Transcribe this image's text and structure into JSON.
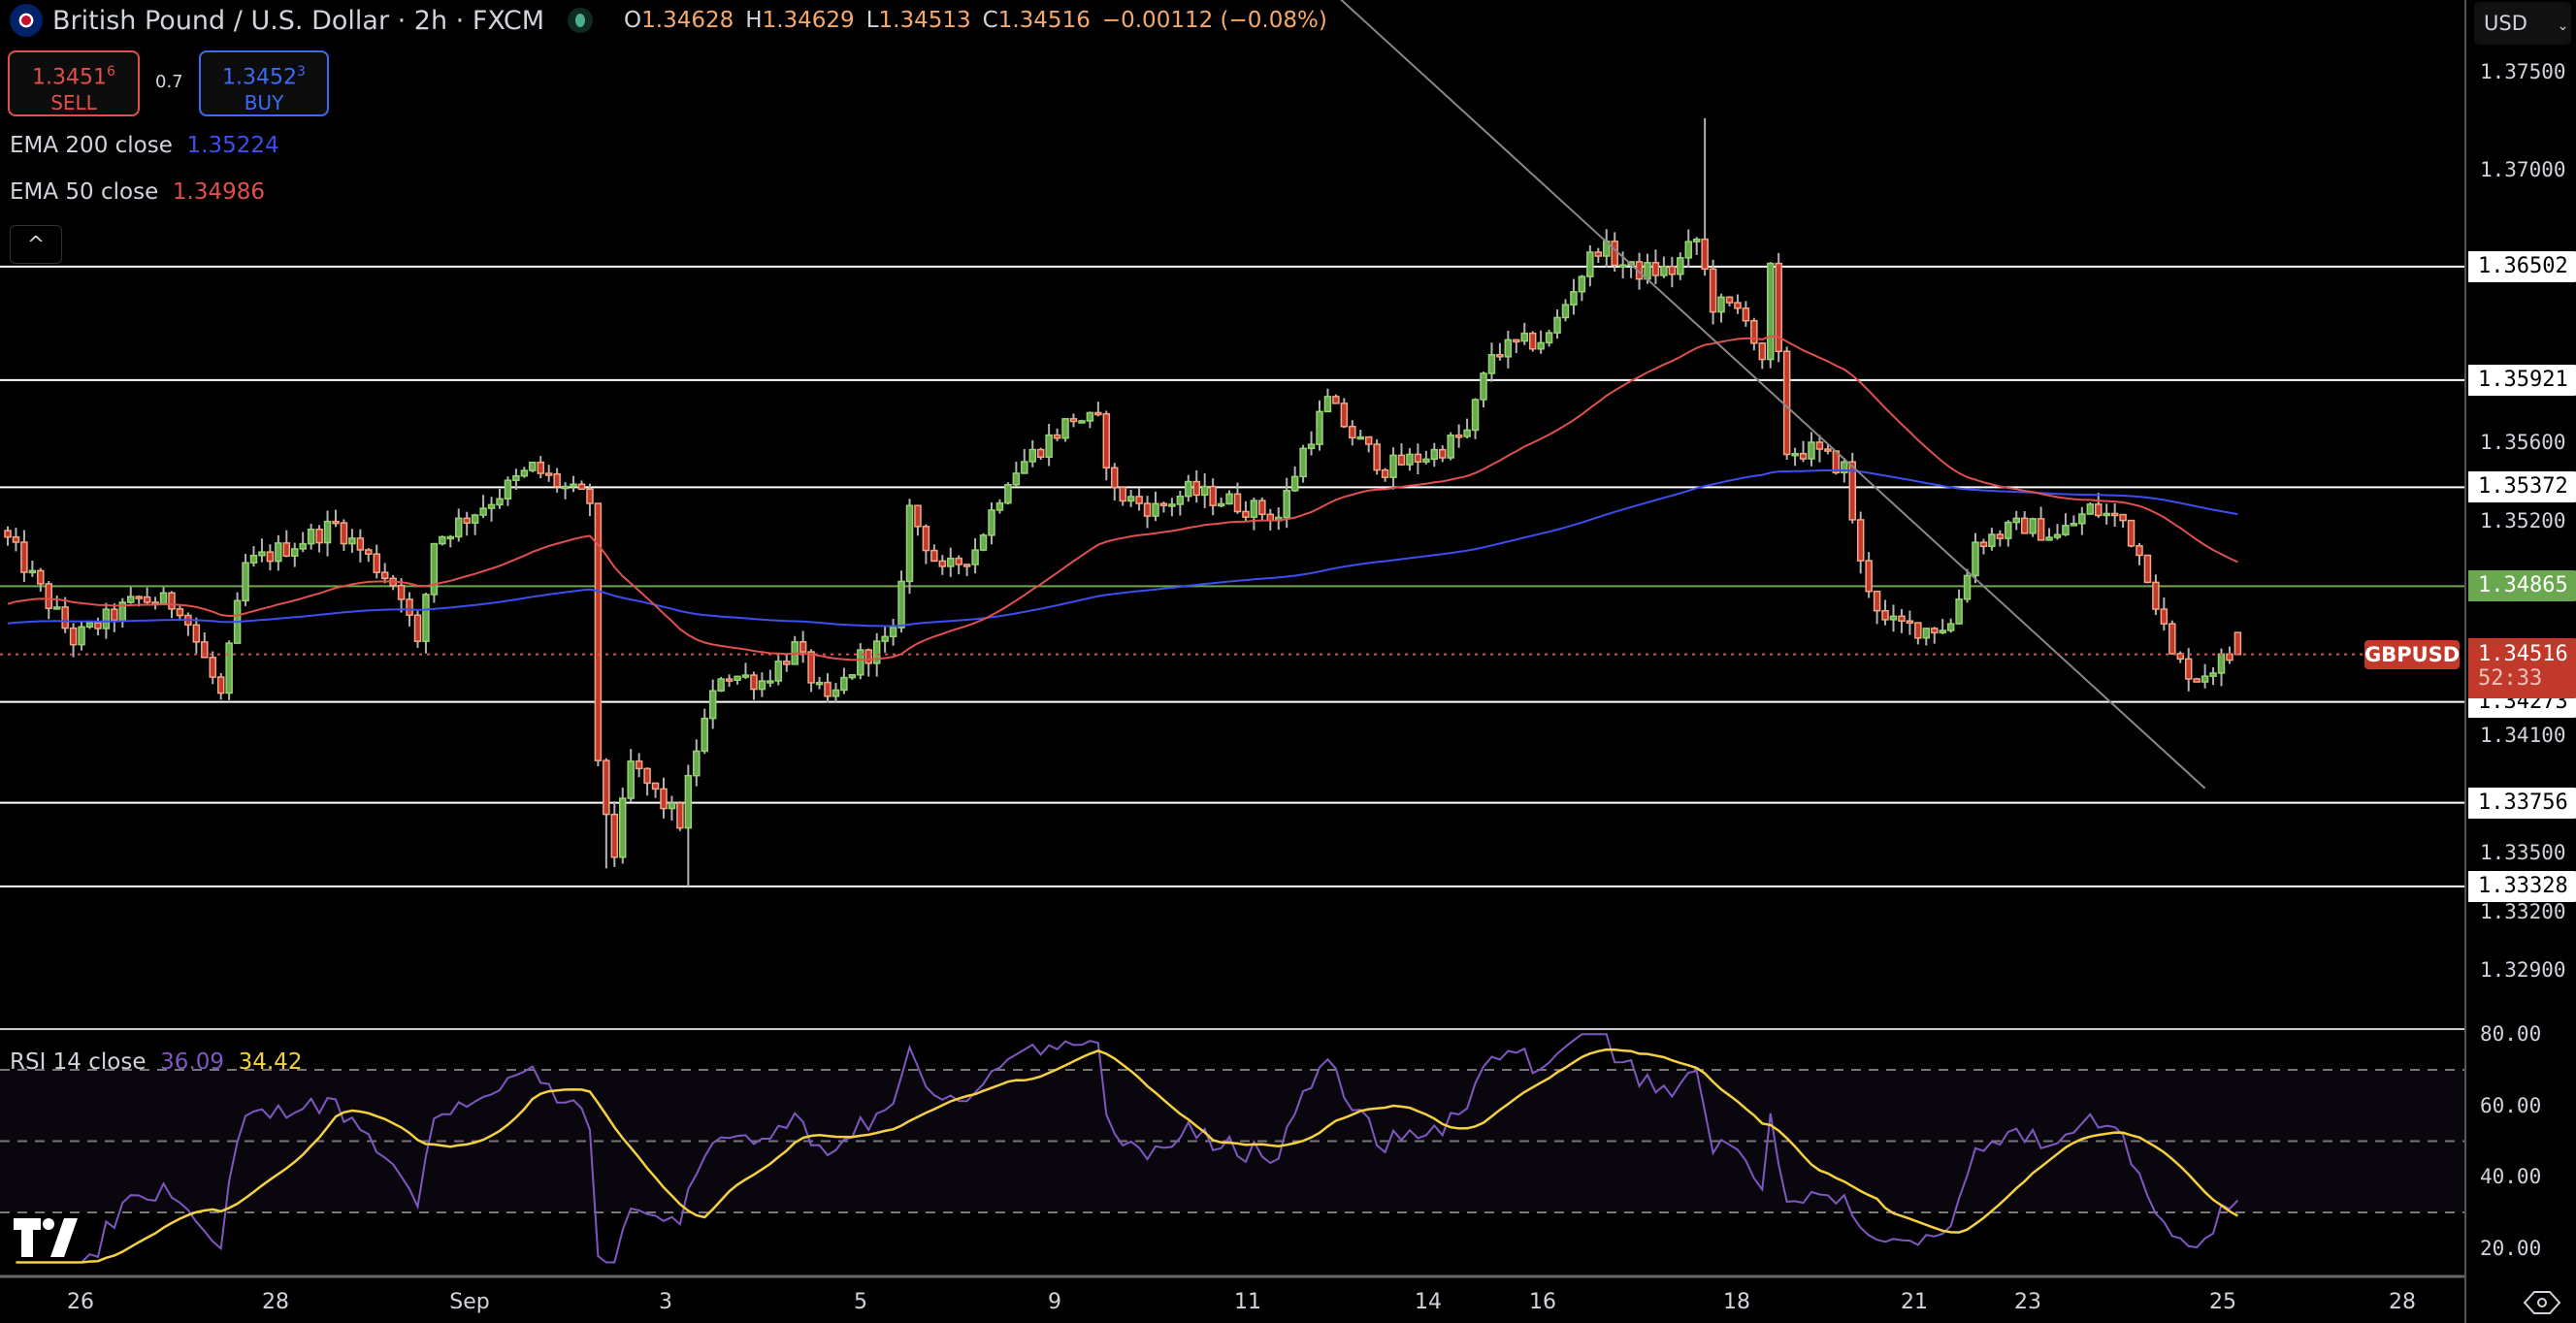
{
  "header": {
    "symbol_title": "British Pound / U.S. Dollar · 2h · FXCM",
    "ohlc": {
      "o_label": "O",
      "o": "1.34628",
      "h_label": "H",
      "h": "1.34629",
      "l_label": "L",
      "l": "1.34513",
      "c_label": "C",
      "c": "1.34516",
      "change": "−0.00112 (−0.08%)"
    }
  },
  "trade": {
    "sell_price": "1.3451",
    "sell_sup": "6",
    "sell_label": "SELL",
    "spread": "0.7",
    "buy_price": "1.3452",
    "buy_sup": "3",
    "buy_label": "BUY"
  },
  "indicators": {
    "ema200_label": "EMA 200 close",
    "ema200_value": "1.35224",
    "ema50_label": "EMA 50 close",
    "ema50_value": "1.34986",
    "rsi_label": "RSI 14 close",
    "rsi_value": "36.09",
    "rsi_ma_value": "34.42"
  },
  "collapse_icon": "^",
  "axis": {
    "currency": "USD",
    "price_ticks": [
      "1.37500",
      "1.37000",
      "1.35600",
      "1.35200",
      "1.34100",
      "1.33500",
      "1.33200",
      "1.32900"
    ],
    "rsi_ticks": [
      "80.00",
      "60.00",
      "40.00",
      "20.00"
    ]
  },
  "levels": [
    {
      "price": "1.36502"
    },
    {
      "price": "1.35921"
    },
    {
      "price": "1.35372"
    },
    {
      "price": "1.34865",
      "color": "#6aa84f"
    },
    {
      "price": "1.34273"
    },
    {
      "price": "1.33756"
    },
    {
      "price": "1.33328"
    }
  ],
  "current": {
    "symbol": "GBPUSD",
    "price": "1.34516",
    "countdown": "52:33"
  },
  "dates": [
    "26",
    "28",
    "Sep",
    "3",
    "5",
    "9",
    "11",
    "14",
    "16",
    "18",
    "21",
    "23",
    "25",
    "28"
  ],
  "logo": "TV",
  "colors": {
    "up": "#6aa84f",
    "up_border": "#93d46f",
    "down": "#c0392b",
    "down_border": "#f4a582",
    "ema200": "#3d4ef0",
    "ema50": "#e0504d",
    "rsi": "#7e57c2",
    "rsi_ma": "#f5d142"
  },
  "chart_data": {
    "type": "candlestick",
    "timeframe": "2h",
    "ylim": [
      1.329,
      1.375
    ],
    "waypoints": [
      [
        0,
        1.351
      ],
      [
        8,
        1.3459
      ],
      [
        16,
        1.348
      ],
      [
        21,
        1.3477
      ],
      [
        26,
        1.343
      ],
      [
        29,
        1.3497
      ],
      [
        40,
        1.3518
      ],
      [
        48,
        1.3484
      ],
      [
        50,
        1.3455
      ],
      [
        52,
        1.351
      ],
      [
        60,
        1.3534
      ],
      [
        64,
        1.3547
      ],
      [
        69,
        1.3534
      ],
      [
        71,
        1.353
      ],
      [
        72,
        1.3392
      ],
      [
        74,
        1.335
      ],
      [
        76,
        1.3395
      ],
      [
        80,
        1.3375
      ],
      [
        82,
        1.3366
      ],
      [
        84,
        1.3404
      ],
      [
        87,
        1.3442
      ],
      [
        92,
        1.3438
      ],
      [
        96,
        1.3455
      ],
      [
        100,
        1.3425
      ],
      [
        104,
        1.345
      ],
      [
        108,
        1.346
      ],
      [
        110,
        1.3526
      ],
      [
        114,
        1.3492
      ],
      [
        118,
        1.3506
      ],
      [
        122,
        1.3543
      ],
      [
        130,
        1.3573
      ],
      [
        133,
        1.357
      ],
      [
        135,
        1.3534
      ],
      [
        140,
        1.3526
      ],
      [
        144,
        1.3535
      ],
      [
        149,
        1.353
      ],
      [
        155,
        1.3522
      ],
      [
        158,
        1.3556
      ],
      [
        161,
        1.3581
      ],
      [
        164,
        1.3564
      ],
      [
        168,
        1.3547
      ],
      [
        174,
        1.3555
      ],
      [
        178,
        1.3565
      ],
      [
        181,
        1.3606
      ],
      [
        188,
        1.3614
      ],
      [
        191,
        1.364
      ],
      [
        194,
        1.3661
      ],
      [
        198,
        1.3648
      ],
      [
        203,
        1.3648
      ],
      [
        206,
        1.3664
      ],
      [
        208,
        1.3631
      ],
      [
        212,
        1.3627
      ],
      [
        214,
        1.3598
      ],
      [
        215,
        1.3648
      ],
      [
        217,
        1.3556
      ],
      [
        220,
        1.3556
      ],
      [
        224,
        1.3547
      ],
      [
        226,
        1.3497
      ],
      [
        229,
        1.3467
      ],
      [
        234,
        1.3465
      ],
      [
        237,
        1.3467
      ],
      [
        240,
        1.3509
      ],
      [
        246,
        1.3518
      ],
      [
        250,
        1.3512
      ],
      [
        254,
        1.3526
      ],
      [
        258,
        1.352
      ],
      [
        261,
        1.3494
      ],
      [
        264,
        1.345
      ],
      [
        267,
        1.344
      ],
      [
        270,
        1.3448
      ],
      [
        272,
        1.34516
      ]
    ],
    "wicks": [
      [
        207,
        "high",
        1.37262
      ],
      [
        83,
        "low",
        1.33328
      ],
      [
        73,
        "low",
        1.3342
      ]
    ],
    "last_bar": {
      "open": 1.34628,
      "high": 1.34629,
      "low": 1.34513,
      "close": 1.34516
    },
    "ema_seed": {
      "ema200": 1.3467,
      "ema50": 1.3476
    },
    "rsi": {
      "period": 14,
      "ma_period": 14,
      "bands": [
        70,
        50,
        30
      ],
      "ylim": [
        15,
        82
      ]
    },
    "trendline": {
      "from": [
        160,
        1.3797
      ],
      "to": [
        268,
        1.3383
      ]
    }
  }
}
